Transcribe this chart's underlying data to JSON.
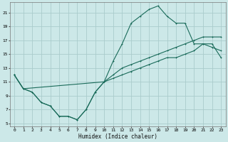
{
  "bg_color": "#cce8e8",
  "grid_color": "#aacccc",
  "line_color": "#1a6b5a",
  "xlabel": "Humidex (Indice chaleur)",
  "xlim": [
    -0.5,
    23.5
  ],
  "ylim": [
    4.5,
    22.5
  ],
  "xticks": [
    0,
    1,
    2,
    3,
    4,
    5,
    6,
    7,
    8,
    9,
    10,
    11,
    12,
    13,
    14,
    15,
    16,
    17,
    18,
    19,
    20,
    21,
    22,
    23
  ],
  "yticks": [
    5,
    7,
    9,
    11,
    13,
    15,
    17,
    19,
    21
  ],
  "line_zigzag_x": [
    0,
    1,
    2,
    3,
    4,
    5,
    6,
    7,
    8,
    9,
    10,
    11,
    12,
    13,
    14,
    15,
    16,
    17,
    18,
    19,
    20,
    21,
    22,
    23
  ],
  "line_zigzag_y": [
    12,
    10,
    9.5,
    8,
    7.5,
    6,
    6,
    5.5,
    7,
    9.5,
    11,
    14,
    16.5,
    19.5,
    20.5,
    21.5,
    22,
    20.5,
    19.5,
    19.5,
    16.5,
    16.5,
    16,
    15.5
  ],
  "line_flat_x": [
    0,
    1,
    2,
    3,
    4,
    5,
    6,
    7,
    8,
    9,
    10,
    11,
    12,
    13,
    14,
    15,
    16,
    17,
    18,
    19,
    20,
    21,
    22,
    23
  ],
  "line_flat_y": [
    12,
    10,
    9.5,
    8,
    7.5,
    6,
    6,
    5.5,
    7,
    9.5,
    11,
    11.5,
    12,
    12.5,
    13,
    13.5,
    14,
    14.5,
    14.5,
    15,
    15.5,
    16.5,
    16.5,
    14.5
  ],
  "line_upper_x": [
    0,
    1,
    10,
    11,
    12,
    13,
    14,
    15,
    16,
    17,
    18,
    19,
    20,
    21,
    22,
    23
  ],
  "line_upper_y": [
    12,
    10,
    11,
    12,
    13,
    13.5,
    14,
    14.5,
    15,
    15.5,
    16,
    16.5,
    17,
    17.5,
    17.5,
    17.5
  ]
}
